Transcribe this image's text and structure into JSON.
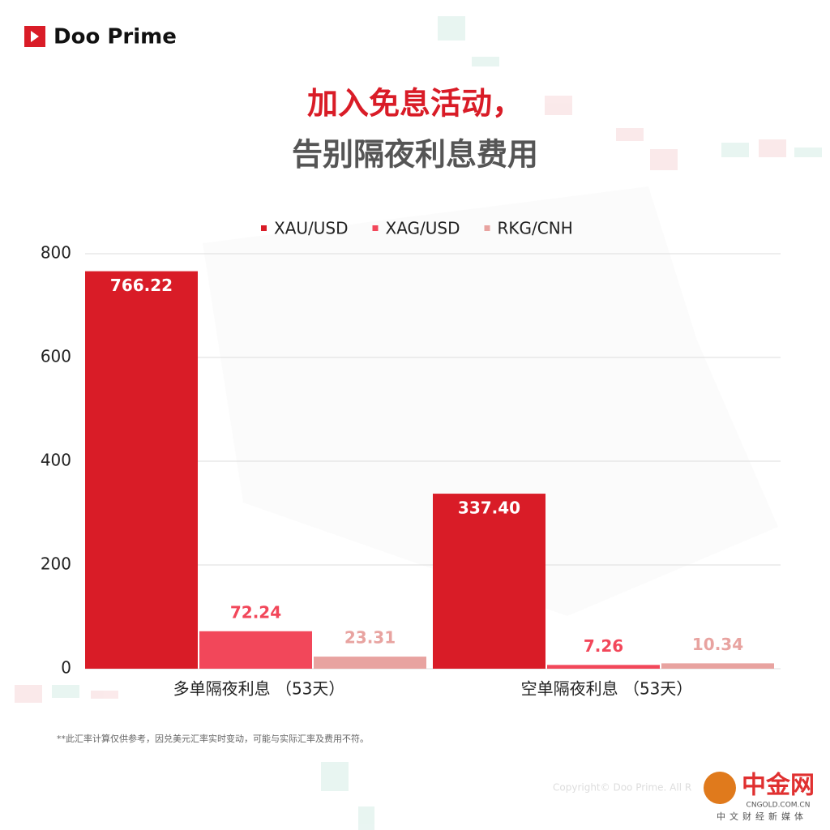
{
  "brand": "Doo Prime",
  "chart_data": {
    "type": "bar",
    "title": "加入免息活动，",
    "subtitle": "告别隔夜利息费用",
    "categories": [
      "多单隔夜利息 （53天）",
      "空单隔夜利息 （53天）"
    ],
    "series": [
      {
        "name": "XAU/USD",
        "color": "#d91c27",
        "values": [
          766.22,
          337.4
        ],
        "value_labels": [
          "766.22",
          "337.40"
        ]
      },
      {
        "name": "XAG/USD",
        "color": "#f2475a",
        "values": [
          72.24,
          7.26
        ],
        "value_labels": [
          "72.24",
          "7.26"
        ]
      },
      {
        "name": "RKG/CNH",
        "color": "#e8a3a0",
        "values": [
          23.31,
          10.34
        ],
        "value_labels": [
          "23.31",
          "10.34"
        ]
      }
    ],
    "ylim": [
      0,
      800
    ],
    "yticks": [
      0,
      200,
      400,
      600,
      800
    ],
    "grid": true,
    "legend": "top"
  },
  "footnote": "**此汇率计算仅供参考，因兑美元汇率实时变动，可能与实际汇率及费用不符。",
  "copyright": "Copyright© Doo Prime. All R",
  "watermark": {
    "name": "中金网",
    "site": "CNGOLD.COM.CN",
    "tagline": "中文财经新媒体"
  }
}
